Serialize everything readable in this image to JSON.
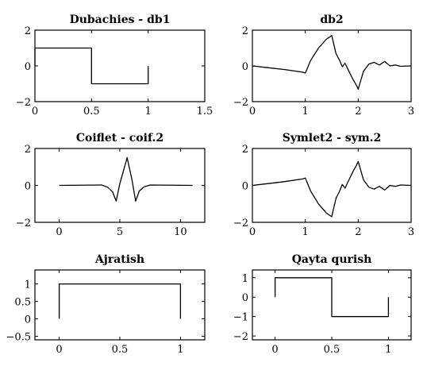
{
  "chart_data": [
    {
      "type": "line",
      "title": "Dubachies - db1",
      "xlim": [
        0,
        1.5
      ],
      "ylim": [
        -2,
        2
      ],
      "xticks": [
        0,
        0.5,
        1,
        1.5
      ],
      "xtick_labels": [
        "0",
        "0.5",
        "1",
        "1.5"
      ],
      "yticks": [
        -2,
        0,
        2
      ],
      "ytick_labels": [
        "−2",
        "0",
        "2"
      ],
      "grid": false,
      "series": [
        {
          "x": [
            0,
            0,
            0.5,
            0.5,
            1,
            1
          ],
          "y": [
            0,
            1,
            1,
            -1,
            -1,
            0
          ]
        }
      ]
    },
    {
      "type": "line",
      "title": "db2",
      "xlim": [
        0,
        3
      ],
      "ylim": [
        -2,
        2
      ],
      "xticks": [
        0,
        1,
        2,
        3
      ],
      "xtick_labels": [
        "0",
        "1",
        "2",
        "3"
      ],
      "yticks": [
        -2,
        0,
        2
      ],
      "ytick_labels": [
        "−2",
        "0",
        "2"
      ],
      "grid": false,
      "series": [
        {
          "x": [
            0,
            0.3,
            0.6,
            0.95,
            1.0,
            1.1,
            1.25,
            1.4,
            1.5,
            1.52,
            1.58,
            1.65,
            1.7,
            1.75,
            1.8,
            1.9,
            1.97,
            2.0,
            2.03,
            2.1,
            2.2,
            2.3,
            2.4,
            2.5,
            2.6,
            2.7,
            2.8,
            3.0
          ],
          "y": [
            0,
            -0.1,
            -0.2,
            -0.35,
            -0.4,
            0.3,
            1.0,
            1.5,
            1.7,
            1.45,
            0.7,
            0.3,
            -0.05,
            0.15,
            -0.15,
            -0.75,
            -1.1,
            -1.3,
            -1.0,
            -0.3,
            0.1,
            0.2,
            0.05,
            0.25,
            0.0,
            0.05,
            -0.02,
            0
          ]
        }
      ]
    },
    {
      "type": "line",
      "title": "Coiflet - coif.2",
      "xlim": [
        -2,
        12
      ],
      "ylim": [
        -2,
        2
      ],
      "xticks": [
        0,
        5,
        10
      ],
      "xtick_labels": [
        "0",
        "5",
        "10"
      ],
      "yticks": [
        -2,
        0,
        2
      ],
      "ytick_labels": [
        "−2",
        "0",
        "2"
      ],
      "grid": false,
      "series": [
        {
          "x": [
            0,
            3.5,
            4.0,
            4.4,
            4.7,
            5.0,
            5.3,
            5.6,
            6.0,
            6.3,
            6.6,
            7.0,
            7.5,
            11
          ],
          "y": [
            0,
            0.02,
            -0.1,
            -0.35,
            -0.85,
            0.1,
            0.8,
            1.5,
            0.3,
            -0.85,
            -0.3,
            -0.08,
            0.02,
            0
          ]
        }
      ]
    },
    {
      "type": "line",
      "title": "Symlet2 - sym.2",
      "xlim": [
        0,
        3
      ],
      "ylim": [
        -2,
        2
      ],
      "xticks": [
        0,
        1,
        2,
        3
      ],
      "xtick_labels": [
        "0",
        "1",
        "2",
        "3"
      ],
      "yticks": [
        -2,
        0,
        2
      ],
      "ytick_labels": [
        "−2",
        "0",
        "2"
      ],
      "grid": false,
      "series": [
        {
          "x": [
            0,
            0.3,
            0.6,
            0.95,
            1.0,
            1.1,
            1.25,
            1.4,
            1.5,
            1.52,
            1.58,
            1.65,
            1.7,
            1.75,
            1.8,
            1.9,
            1.97,
            2.0,
            2.03,
            2.1,
            2.2,
            2.3,
            2.4,
            2.5,
            2.6,
            2.7,
            2.8,
            3.0
          ],
          "y": [
            0,
            0.1,
            0.2,
            0.35,
            0.4,
            -0.3,
            -1.0,
            -1.5,
            -1.7,
            -1.45,
            -0.7,
            -0.3,
            0.05,
            -0.15,
            0.15,
            0.75,
            1.1,
            1.3,
            1.0,
            0.3,
            -0.1,
            -0.2,
            -0.05,
            -0.25,
            0.0,
            -0.05,
            0.02,
            0
          ]
        }
      ]
    },
    {
      "type": "line",
      "title": "Ajratish",
      "xlim": [
        -0.2,
        1.2
      ],
      "ylim": [
        -0.6,
        1.4
      ],
      "xticks": [
        0,
        0.5,
        1
      ],
      "xtick_labels": [
        "0",
        "0.5",
        "1"
      ],
      "yticks": [
        -0.5,
        0,
        0.5,
        1
      ],
      "ytick_labels": [
        "−0.5",
        "0",
        "0.5",
        "1"
      ],
      "grid": false,
      "series": [
        {
          "x": [
            0,
            0,
            1,
            1
          ],
          "y": [
            0,
            1,
            1,
            0
          ]
        }
      ]
    },
    {
      "type": "line",
      "title": "Qayta qurish",
      "xlim": [
        -0.2,
        1.2
      ],
      "ylim": [
        -2.2,
        1.4
      ],
      "xticks": [
        0,
        0.5,
        1
      ],
      "xtick_labels": [
        "0",
        "0.5",
        "1"
      ],
      "yticks": [
        -2,
        -1,
        0,
        1
      ],
      "ytick_labels": [
        "−2",
        "−1",
        "0",
        "1"
      ],
      "grid": false,
      "series": [
        {
          "x": [
            0,
            0,
            0.5,
            0.5,
            1,
            1
          ],
          "y": [
            0,
            1,
            1,
            -1,
            -1,
            0
          ]
        }
      ]
    }
  ]
}
